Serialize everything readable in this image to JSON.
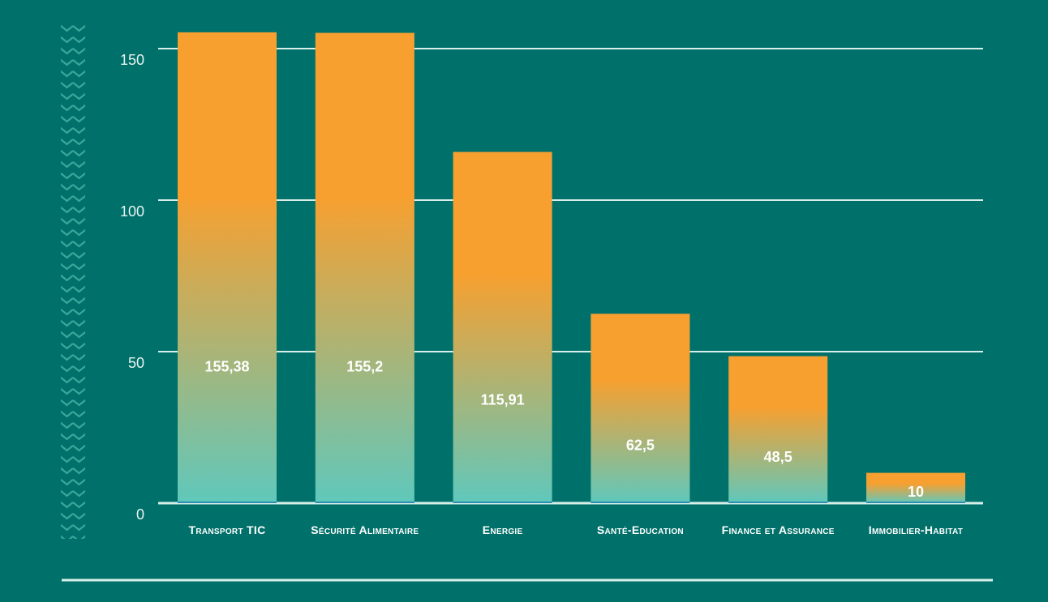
{
  "colors": {
    "background": "#00716a",
    "bar_top": "#f7a030",
    "bar_bottom": "#5fc8bc",
    "gridline": "#d8efe9",
    "text": "#ffffff",
    "pattern": "#3aa79b"
  },
  "chart_data": {
    "type": "bar",
    "categories": [
      "Transport TIC",
      "Sécurité Alimentaire",
      "Energie",
      "Santé-Education",
      "Finance et Assurance",
      "Immobilier-Habitat"
    ],
    "values": [
      155.38,
      155.2,
      115.91,
      62.5,
      48.5,
      10
    ],
    "data_labels": [
      "155,38",
      "155,2",
      "115,91",
      "62,5",
      "48,5",
      "10"
    ],
    "yticks": [
      0,
      50,
      100,
      150
    ],
    "ylim": [
      0,
      160
    ],
    "grid": true,
    "legend": "none",
    "title": "",
    "xlabel": "",
    "ylabel": ""
  }
}
